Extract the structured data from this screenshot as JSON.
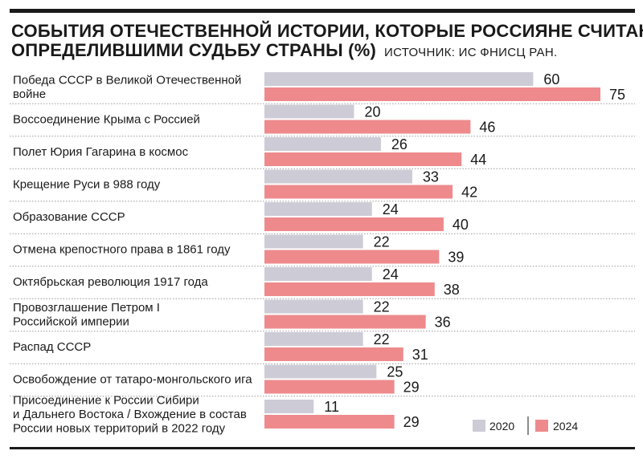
{
  "title_line1": "СОБЫТИЯ ОТЕЧЕСТВЕННОЙ ИСТОРИИ, КОТОРЫЕ РОССИЯНЕ СЧИТАЮТ",
  "title_line2": "ОПРЕДЕЛИВШИМИ СУДЬБУ СТРАНЫ (%)",
  "source": "ИСТОЧНИК: ИС ФНИСЦ РАН.",
  "colors": {
    "series_2020": "#cdcbd6",
    "series_2024": "#ee8a8c"
  },
  "chart_data": {
    "type": "bar",
    "orientation": "horizontal",
    "categories": [
      [
        "Победа СССР в Великой Отечественной",
        "войне"
      ],
      [
        "Воссоединение Крыма с Россией"
      ],
      [
        "Полет Юрия Гагарина в космос"
      ],
      [
        "Крещение Руси в 988 году"
      ],
      [
        "Образование СССР"
      ],
      [
        "Отмена крепостного права в 1861 году"
      ],
      [
        "Октябрьская революция 1917 года"
      ],
      [
        "Провозглашение Петром I",
        "Российской империи"
      ],
      [
        "Распад СССР"
      ],
      [
        "Освобождение от татаро-монгольского ига"
      ],
      [
        "Присоединение к России Сибири",
        "и Дальнего Востока / Вхождение в состав",
        "России новых территорий в 2022 году"
      ]
    ],
    "series": [
      {
        "name": "2020",
        "values": [
          60,
          20,
          26,
          33,
          24,
          22,
          24,
          22,
          22,
          25,
          11
        ]
      },
      {
        "name": "2024",
        "values": [
          75,
          46,
          44,
          42,
          40,
          39,
          38,
          36,
          31,
          29,
          29
        ]
      }
    ],
    "xlim": [
      0,
      75
    ],
    "legend": "bottom-right",
    "grid": false
  }
}
